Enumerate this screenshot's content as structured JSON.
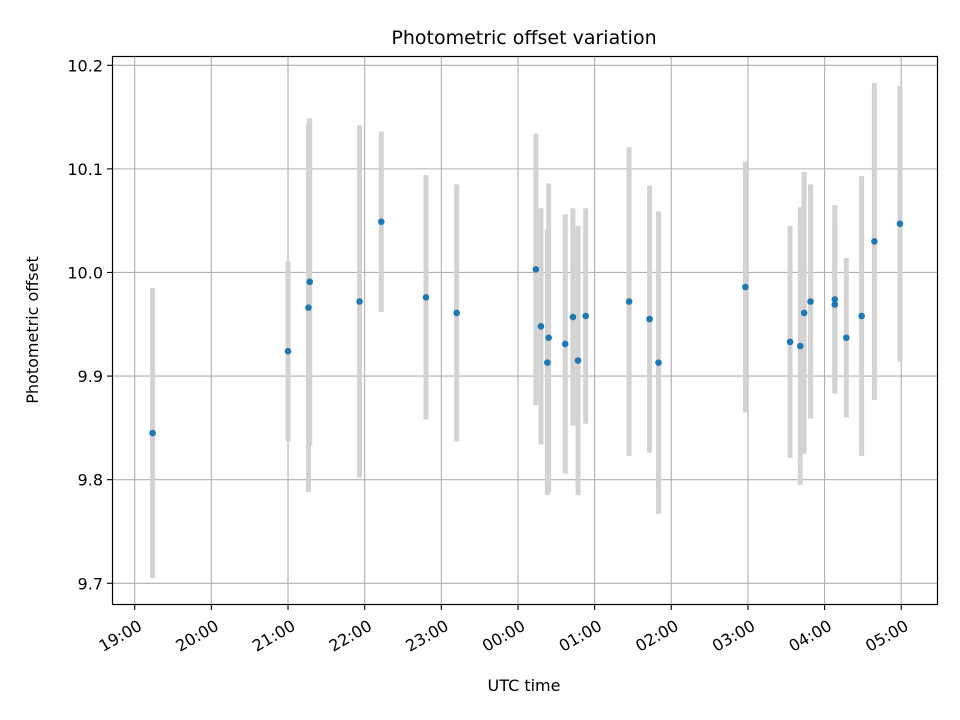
{
  "chart_data": {
    "type": "scatter",
    "title": "Photometric offset variation",
    "xlabel": "UTC time",
    "ylabel": "Photometric offset",
    "x_ticks": [
      "19:00",
      "20:00",
      "21:00",
      "22:00",
      "23:00",
      "00:00",
      "01:00",
      "02:00",
      "03:00",
      "04:00",
      "05:00"
    ],
    "x_range": [
      "18:43",
      "05:28"
    ],
    "ylim": [
      9.68,
      10.208
    ],
    "y_ticks": [
      9.7,
      9.8,
      9.9,
      10.0,
      10.1,
      10.2
    ],
    "grid": true,
    "colors": {
      "points": "#1f77b4",
      "errorbars": "#d3d3d3",
      "grid": "#b0b0b0"
    },
    "series": [
      {
        "points": [
          {
            "x": "19:14",
            "y": 9.845,
            "err": 0.14
          },
          {
            "x": "21:00",
            "y": 9.924,
            "err": 0.087
          },
          {
            "x": "21:16",
            "y": 9.966,
            "err": 0.178
          },
          {
            "x": "21:17",
            "y": 9.991,
            "err": 0.158
          },
          {
            "x": "21:56",
            "y": 9.972,
            "err": 0.17
          },
          {
            "x": "22:13",
            "y": 10.049,
            "err": 0.087
          },
          {
            "x": "22:48",
            "y": 9.976,
            "err": 0.118
          },
          {
            "x": "23:12",
            "y": 9.961,
            "err": 0.124
          },
          {
            "x": "00:14",
            "y": 10.003,
            "err": 0.131
          },
          {
            "x": "00:18",
            "y": 9.948,
            "err": 0.114
          },
          {
            "x": "00:23",
            "y": 9.913,
            "err": 0.128
          },
          {
            "x": "00:24",
            "y": 9.937,
            "err": 0.149
          },
          {
            "x": "00:37",
            "y": 9.931,
            "err": 0.125
          },
          {
            "x": "00:43",
            "y": 9.957,
            "err": 0.105
          },
          {
            "x": "00:47",
            "y": 9.915,
            "err": 0.13
          },
          {
            "x": "00:53",
            "y": 9.958,
            "err": 0.104
          },
          {
            "x": "01:27",
            "y": 9.972,
            "err": 0.149
          },
          {
            "x": "01:43",
            "y": 9.955,
            "err": 0.129
          },
          {
            "x": "01:50",
            "y": 9.913,
            "err": 0.146
          },
          {
            "x": "02:58",
            "y": 9.986,
            "err": 0.121
          },
          {
            "x": "03:33",
            "y": 9.933,
            "err": 0.112
          },
          {
            "x": "03:41",
            "y": 9.929,
            "err": 0.134
          },
          {
            "x": "03:44",
            "y": 9.961,
            "err": 0.136
          },
          {
            "x": "03:49",
            "y": 9.972,
            "err": 0.113
          },
          {
            "x": "04:08",
            "y": 9.974,
            "err": 0.091
          },
          {
            "x": "04:08",
            "y": 9.969,
            "err": 0.081
          },
          {
            "x": "04:17",
            "y": 9.937,
            "err": 0.077
          },
          {
            "x": "04:29",
            "y": 9.958,
            "err": 0.135
          },
          {
            "x": "04:39",
            "y": 10.03,
            "err": 0.153
          },
          {
            "x": "04:59",
            "y": 10.047,
            "err": 0.133
          }
        ]
      }
    ]
  }
}
